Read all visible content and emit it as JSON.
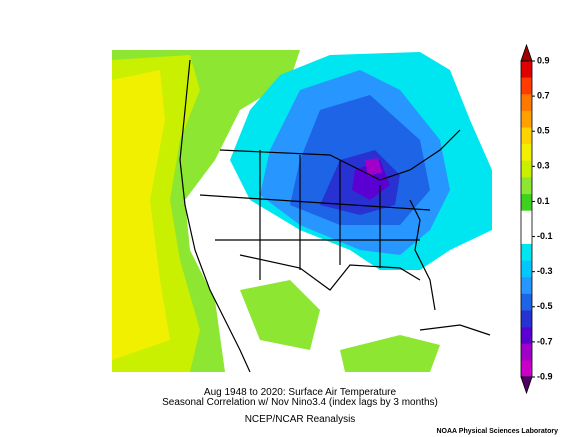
{
  "caption": {
    "line1": "Aug 1948 to 2020: Surface Air Temperature",
    "line2": "Seasonal Correlation w/ Nov Nino3.4 (index lags by 3 months)",
    "line3": "NCEP/NCAR Reanalysis"
  },
  "credit": "NOAA Physical Sciences Laboratory",
  "colorbar": {
    "ticks": [
      0.9,
      0.7,
      0.5,
      0.3,
      0.1,
      -0.1,
      -0.3,
      -0.5,
      -0.7,
      -0.9
    ],
    "colors": [
      "#a00000",
      "#e00000",
      "#ff3c00",
      "#ff7800",
      "#ffa000",
      "#ffd200",
      "#f0f000",
      "#c8f000",
      "#8ce632",
      "#3cd21e",
      "#ffffff",
      "#ffffff",
      "#00e6f0",
      "#00c8ff",
      "#2896ff",
      "#1e64e6",
      "#2832d2",
      "#5a00d2",
      "#a000c8",
      "#c800c8",
      "#500064"
    ]
  }
}
